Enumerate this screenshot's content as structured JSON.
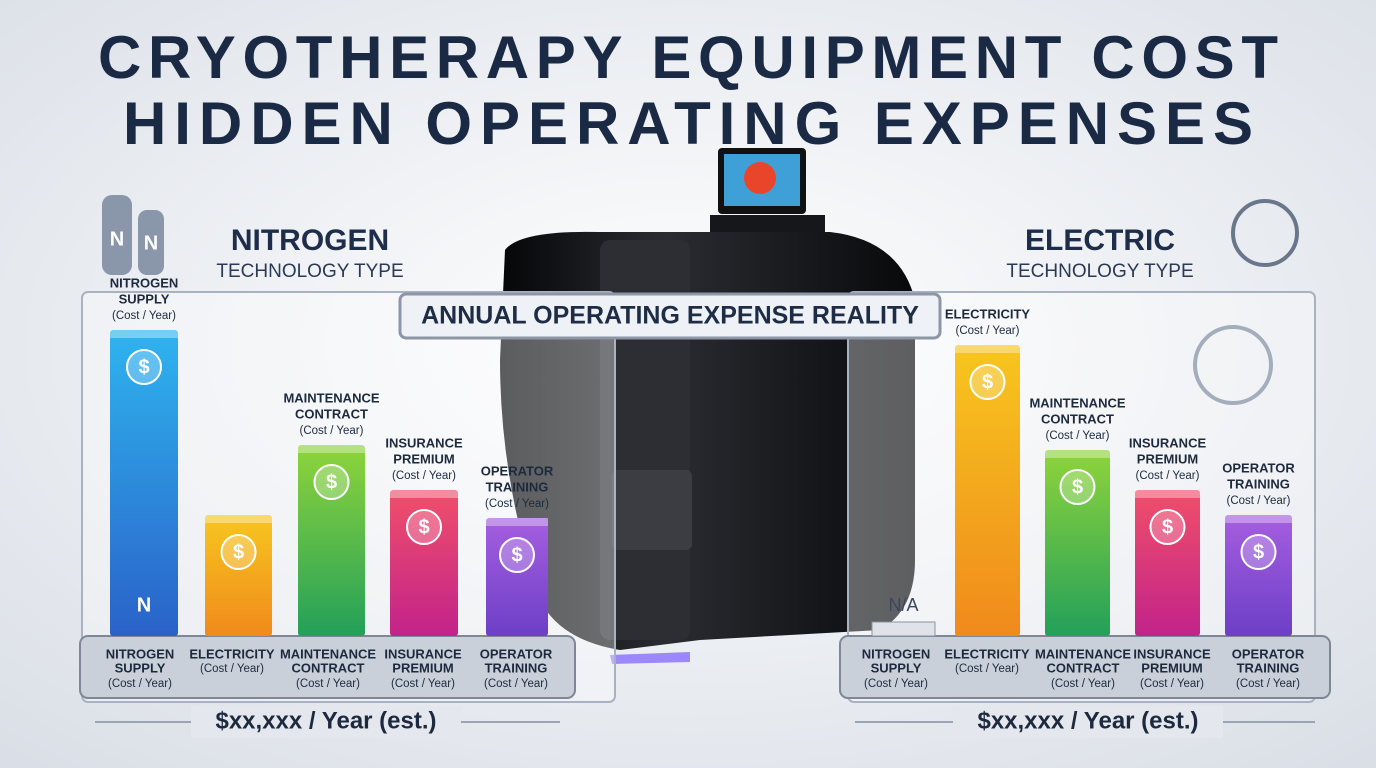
{
  "header": {
    "title_lines": [
      "CRYOTHERAPY EQUIPMENT COST",
      "HIDDEN OPERATING EXPENSES"
    ]
  },
  "banner": "ANNUAL OPERATING EXPENSE REALITY",
  "icons": {
    "currency": "$",
    "nitrogen": "N"
  },
  "panels": [
    {
      "title": "NITROGEN",
      "subtitle": "TECHNOLOGY TYPE",
      "bars": [
        {
          "label": [
            "NITROGEN",
            "SUPPLY"
          ],
          "unit": "(Cost / Year)"
        },
        {},
        {
          "label": [
            "MAINTENANCE",
            "CONTRACT"
          ],
          "unit": "(Cost / Year)"
        },
        {
          "label": [
            "INSURANCE",
            "PREMIUM"
          ],
          "unit": "(Cost / Year)"
        },
        {
          "label": [
            "OPERATOR",
            "TRAINING"
          ],
          "unit": "(Cost / Year)"
        }
      ],
      "base": [
        {
          "label": [
            "NITROGEN",
            "SUPPLY"
          ],
          "unit": "(Cost / Year)"
        },
        {
          "label": [
            "ELECTRICITY"
          ],
          "unit": "(Cost / Year)"
        },
        {
          "label": [
            "MAINTENANCE",
            "CONTRACT"
          ],
          "unit": "(Cost / Year)"
        },
        {
          "label": [
            "INSURANCE",
            "PREMIUM"
          ],
          "unit": "(Cost / Year)"
        },
        {
          "label": [
            "OPERATOR",
            "TRAINING"
          ],
          "unit": "(Cost / Year)"
        }
      ],
      "total": "$xx,xxx / Year (est.)"
    },
    {
      "title": "ELECTRIC",
      "subtitle": "TECHNOLOGY TYPE",
      "bars": [
        {
          "na": "N/A"
        },
        {
          "label": [
            "ELECTRICITY"
          ],
          "unit": "(Cost / Year)"
        },
        {
          "label": [
            "MAINTENANCE",
            "CONTRACT"
          ],
          "unit": "(Cost / Year)"
        },
        {
          "label": [
            "INSURANCE",
            "PREMIUM"
          ],
          "unit": "(Cost / Year)"
        },
        {
          "label": [
            "OPERATOR",
            "TRAINING"
          ],
          "unit": "(Cost / Year)"
        }
      ],
      "base": [
        {
          "label": [
            "NITROGEN",
            "SUPPLY"
          ],
          "unit": "(Cost / Year)"
        },
        {
          "label": [
            "ELECTRICITY"
          ],
          "unit": "(Cost / Year)"
        },
        {
          "label": [
            "MAINTENANCE",
            "CONTRACT"
          ],
          "unit": "(Cost / Year)"
        },
        {
          "label": [
            "INSURANCE",
            "PREMIUM"
          ],
          "unit": "(Cost / Year)"
        },
        {
          "label": [
            "OPERATOR",
            "TRAINING"
          ],
          "unit": "(Cost / Year)"
        }
      ],
      "total": "$xx,xxx / Year (est.)"
    }
  ]
}
